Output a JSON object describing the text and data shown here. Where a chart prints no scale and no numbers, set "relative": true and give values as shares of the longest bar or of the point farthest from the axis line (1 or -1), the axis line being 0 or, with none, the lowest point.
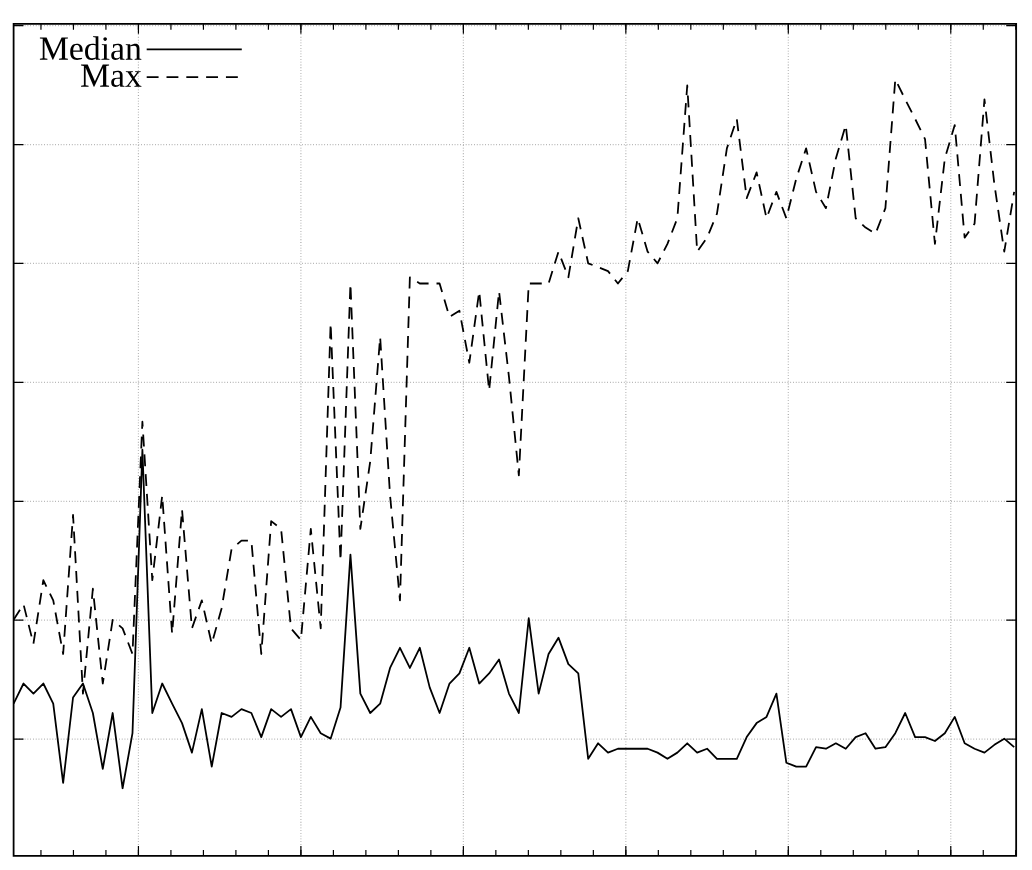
{
  "chart_data": {
    "type": "line",
    "relative": true,
    "grid": true,
    "legend": "top left",
    "marker": "none",
    "categories": [
      null,
      null,
      null,
      null,
      null,
      null,
      null,
      null,
      null,
      null,
      null,
      null,
      null,
      null,
      null,
      null,
      null,
      null,
      null,
      null,
      null,
      null,
      null,
      null,
      null,
      null,
      null,
      null,
      null,
      null,
      null,
      null,
      null,
      null,
      null,
      null,
      null,
      null,
      null,
      null,
      null,
      null,
      null,
      null,
      null,
      null,
      null,
      null,
      null,
      null,
      null,
      null,
      null,
      null,
      null,
      null,
      null,
      null,
      null,
      null,
      null,
      null,
      null,
      null,
      null,
      null,
      null,
      null,
      null,
      null,
      null,
      null,
      null,
      null,
      null,
      null,
      null,
      null,
      null,
      null,
      null,
      null,
      null,
      null,
      null,
      null,
      null,
      null,
      null,
      null,
      null,
      null,
      null,
      null,
      null,
      null,
      null,
      null,
      null,
      null,
      null,
      null
    ],
    "series": [
      {
        "name": "Median",
        "color": "#000000",
        "line_style": "solid",
        "values": [
          0.196,
          0.222,
          0.209,
          0.222,
          0.196,
          0.094,
          0.204,
          0.222,
          0.184,
          0.112,
          0.184,
          0.087,
          0.158,
          0.523,
          0.184,
          0.222,
          0.196,
          0.171,
          0.133,
          0.189,
          0.115,
          0.184,
          0.179,
          0.189,
          0.184,
          0.153,
          0.189,
          0.179,
          0.189,
          0.153,
          0.179,
          0.158,
          0.151,
          0.191,
          0.388,
          0.209,
          0.184,
          0.196,
          0.242,
          0.268,
          0.242,
          0.268,
          0.217,
          0.184,
          0.222,
          0.235,
          0.268,
          0.222,
          0.235,
          0.253,
          0.209,
          0.184,
          0.306,
          0.209,
          0.26,
          0.281,
          0.247,
          0.235,
          0.125,
          0.145,
          0.133,
          0.138,
          0.138,
          0.138,
          0.138,
          0.133,
          0.125,
          0.133,
          0.145,
          0.133,
          0.138,
          0.125,
          0.125,
          0.125,
          0.153,
          0.171,
          0.179,
          0.209,
          0.12,
          0.115,
          0.115,
          0.14,
          0.138,
          0.145,
          0.138,
          0.153,
          0.158,
          0.138,
          0.14,
          0.158,
          0.184,
          0.153,
          0.153,
          0.148,
          0.158,
          0.179,
          0.145,
          0.138,
          0.133,
          0.143,
          0.151,
          0.14
        ]
      },
      {
        "name": "Max",
        "color": "#000000",
        "line_style": "dashed",
        "values": [
          0.304,
          0.324,
          0.273,
          0.355,
          0.329,
          0.26,
          0.439,
          0.209,
          0.344,
          0.222,
          0.304,
          0.293,
          0.26,
          0.559,
          0.355,
          0.464,
          0.286,
          0.446,
          0.293,
          0.329,
          0.273,
          0.319,
          0.395,
          0.406,
          0.406,
          0.26,
          0.431,
          0.421,
          0.293,
          0.278,
          0.421,
          0.293,
          0.686,
          0.38,
          0.737,
          0.421,
          0.508,
          0.668,
          0.464,
          0.329,
          0.745,
          0.737,
          0.737,
          0.737,
          0.694,
          0.702,
          0.635,
          0.727,
          0.599,
          0.727,
          0.617,
          0.49,
          0.737,
          0.737,
          0.737,
          0.778,
          0.745,
          0.821,
          0.763,
          0.758,
          0.753,
          0.737,
          0.753,
          0.821,
          0.778,
          0.763,
          0.788,
          0.821,
          0.992,
          0.778,
          0.796,
          0.827,
          0.911,
          0.949,
          0.847,
          0.88,
          0.821,
          0.855,
          0.821,
          0.872,
          0.911,
          0.855,
          0.834,
          0.898,
          0.941,
          0.821,
          0.809,
          0.801,
          0.834,
          1.0,
          0.974,
          0.949,
          0.923,
          0.788,
          0.898,
          0.941,
          0.796,
          0.814,
          0.974,
          0.865,
          0.778,
          0.855
        ]
      }
    ]
  }
}
